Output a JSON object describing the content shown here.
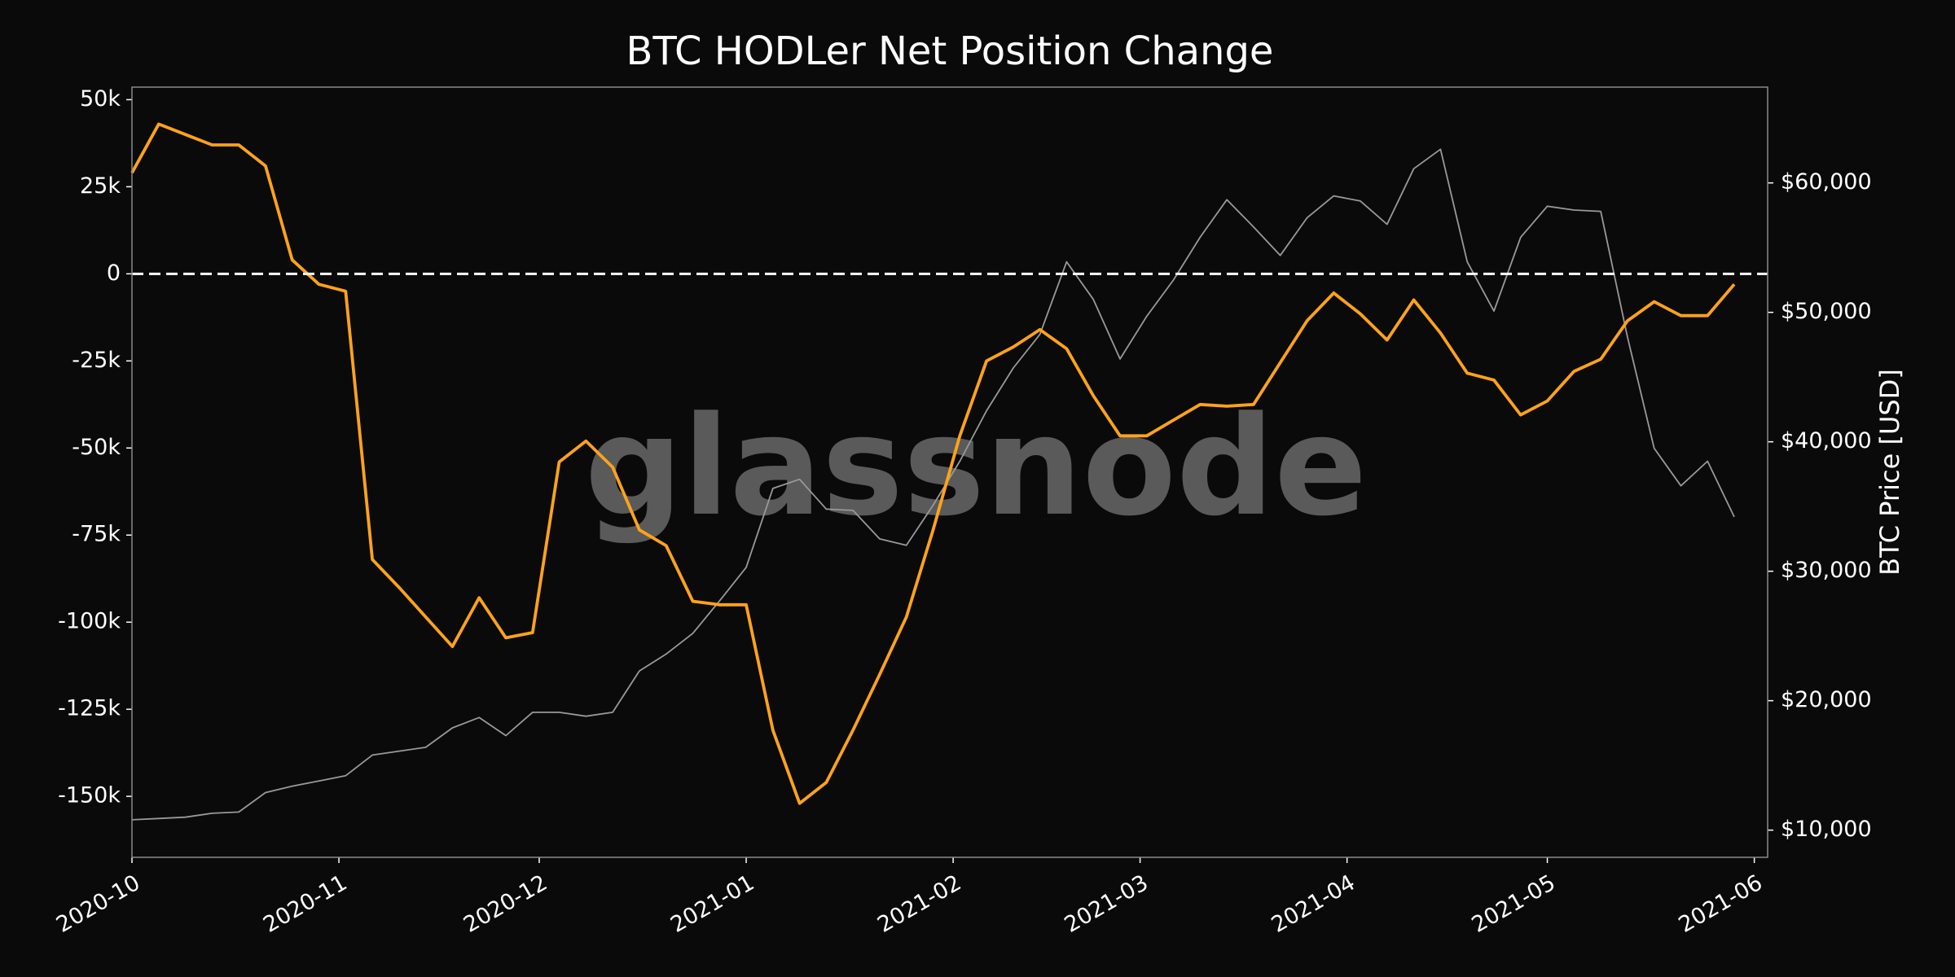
{
  "chart_data": {
    "type": "line",
    "title": "BTC HODLer Net Position Change",
    "y2label": "BTC Price [USD]",
    "watermark": "glassnode",
    "x": [
      "2020-10-01",
      "2020-10-05",
      "2020-10-09",
      "2020-10-13",
      "2020-10-17",
      "2020-10-21",
      "2020-10-25",
      "2020-10-29",
      "2020-11-02",
      "2020-11-06",
      "2020-11-10",
      "2020-11-14",
      "2020-11-18",
      "2020-11-22",
      "2020-11-26",
      "2020-11-30",
      "2020-12-04",
      "2020-12-08",
      "2020-12-12",
      "2020-12-16",
      "2020-12-20",
      "2020-12-24",
      "2020-12-28",
      "2021-01-01",
      "2021-01-05",
      "2021-01-09",
      "2021-01-13",
      "2021-01-17",
      "2021-01-21",
      "2021-01-25",
      "2021-01-29",
      "2021-02-02",
      "2021-02-06",
      "2021-02-10",
      "2021-02-14",
      "2021-02-18",
      "2021-02-22",
      "2021-02-26",
      "2021-03-02",
      "2021-03-06",
      "2021-03-10",
      "2021-03-14",
      "2021-03-18",
      "2021-03-22",
      "2021-03-26",
      "2021-03-30",
      "2021-04-03",
      "2021-04-07",
      "2021-04-11",
      "2021-04-15",
      "2021-04-19",
      "2021-04-23",
      "2021-04-27",
      "2021-05-01",
      "2021-05-05",
      "2021-05-09",
      "2021-05-13",
      "2021-05-17",
      "2021-05-21",
      "2021-05-25",
      "2021-05-29"
    ],
    "series": [
      {
        "color": "#999999",
        "axis": "y2",
        "values": [
          10800,
          10900,
          11000,
          11300,
          11400,
          12900,
          13400,
          13800,
          14200,
          15800,
          16100,
          16400,
          17900,
          18700,
          17300,
          19100,
          19100,
          18800,
          19100,
          22300,
          23600,
          25200,
          27700,
          30300,
          36400,
          37100,
          34800,
          34700,
          32500,
          32000,
          35100,
          38500,
          42400,
          45700,
          48300,
          53900,
          51000,
          46400,
          49700,
          52500,
          55800,
          58700,
          56600,
          54400,
          57300,
          59000,
          58600,
          56800,
          61100,
          62600,
          53900,
          50100,
          55800,
          58200,
          57900,
          57800,
          48100,
          39500,
          36600,
          38500,
          34200
        ]
      },
      {
        "color": "#ffa31a",
        "axis": "y",
        "values": [
          29000,
          43000,
          40000,
          37000,
          37000,
          31000,
          4000,
          -3000,
          -5000,
          -82000,
          -90000,
          -98500,
          -107000,
          -93000,
          -104500,
          -103000,
          -54000,
          -48000,
          -55500,
          -73500,
          -78000,
          -94000,
          -95000,
          -95000,
          -131000,
          -152000,
          -146000,
          -131000,
          -115000,
          -98500,
          -73500,
          -46500,
          -25000,
          -21000,
          -16000,
          -21500,
          -35000,
          -46500,
          -46500,
          -42000,
          -37500,
          -38000,
          -37500,
          -25500,
          -13500,
          -5500,
          -11500,
          -19000,
          -7500,
          -17000,
          -28500,
          -30500,
          -40500,
          -36500,
          -28000,
          -24500,
          -13500,
          -8000,
          -12000,
          -12000,
          -3000
        ]
      }
    ],
    "hline": 0,
    "xlim": [
      "2020-10-01",
      "2021-06-03"
    ],
    "xticks": [
      {
        "value": "2020-10-01",
        "label": "2020-10"
      },
      {
        "value": "2020-11-01",
        "label": "2020-11"
      },
      {
        "value": "2020-12-01",
        "label": "2020-12"
      },
      {
        "value": "2021-01-01",
        "label": "2021-01"
      },
      {
        "value": "2021-02-01",
        "label": "2021-02"
      },
      {
        "value": "2021-03-01",
        "label": "2021-03"
      },
      {
        "value": "2021-04-01",
        "label": "2021-04"
      },
      {
        "value": "2021-05-01",
        "label": "2021-05"
      },
      {
        "value": "2021-06-01",
        "label": "2021-06"
      }
    ],
    "ylim": [
      -167500,
      53600
    ],
    "yticks": [
      {
        "value": 50000,
        "label": "50k"
      },
      {
        "value": 25000,
        "label": "25k"
      },
      0,
      {
        "value": -25000,
        "label": "-25k"
      },
      {
        "value": -50000,
        "label": "-50k"
      },
      {
        "value": -75000,
        "label": "-75k"
      },
      {
        "value": -100000,
        "label": "-100k"
      },
      {
        "value": -125000,
        "label": "-125k"
      },
      {
        "value": -150000,
        "label": "-150k"
      }
    ],
    "y2lim": [
      7900,
      67400
    ],
    "y2ticks": [
      {
        "value": 10000,
        "label": "$10,000"
      },
      {
        "value": 20000,
        "label": "$20,000"
      },
      {
        "value": 30000,
        "label": "$30,000"
      },
      {
        "value": 40000,
        "label": "$40,000"
      },
      {
        "value": 50000,
        "label": "$50,000"
      },
      {
        "value": 60000,
        "label": "$60,000"
      }
    ]
  }
}
